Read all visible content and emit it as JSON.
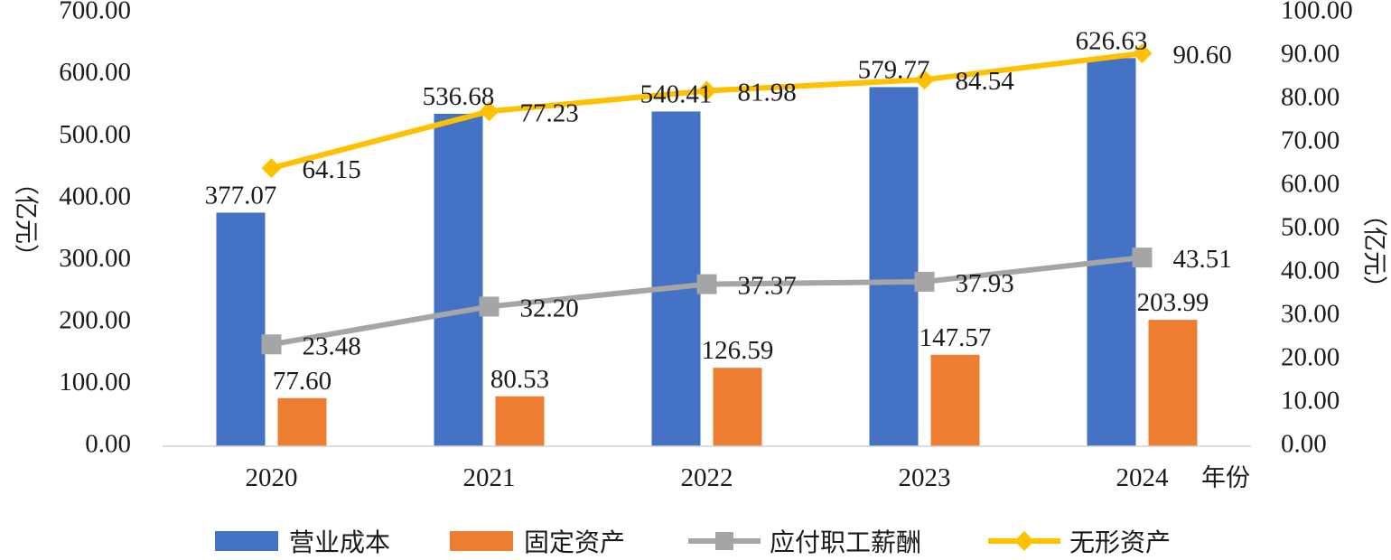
{
  "chart_data": {
    "type": "bar",
    "categories": [
      "2020",
      "2021",
      "2022",
      "2023",
      "2024"
    ],
    "xlabel": "年份",
    "ylabel_left": "（亿元）",
    "ylabel_right": "（亿元）",
    "ylim_left": [
      0,
      700
    ],
    "ylim_right": [
      0,
      100
    ],
    "yticks_left": [
      "0.00",
      "100.00",
      "200.00",
      "300.00",
      "400.00",
      "500.00",
      "600.00",
      "700.00"
    ],
    "yticks_right": [
      "0.00",
      "10.00",
      "20.00",
      "30.00",
      "40.00",
      "50.00",
      "60.00",
      "70.00",
      "80.00",
      "90.00",
      "100.00"
    ],
    "grid": false,
    "legend_position": "bottom",
    "series": [
      {
        "name": "营业成本",
        "type": "bar",
        "axis": "left",
        "color": "#4472C4",
        "values": [
          377.07,
          536.68,
          540.41,
          579.77,
          626.63
        ],
        "labels": [
          "377.07",
          "536.68",
          "540.41",
          "579.77",
          "626.63"
        ]
      },
      {
        "name": "固定资产",
        "type": "bar",
        "axis": "left",
        "color": "#ED7D31",
        "values": [
          77.6,
          80.53,
          126.59,
          147.57,
          203.99
        ],
        "labels": [
          "77.60",
          "80.53",
          "126.59",
          "147.57",
          "203.99"
        ]
      },
      {
        "name": "应付职工薪酬",
        "type": "line",
        "axis": "right",
        "color": "#A5A5A5",
        "marker": "square",
        "values": [
          23.48,
          32.2,
          37.37,
          37.93,
          43.51
        ],
        "labels": [
          "23.48",
          "32.20",
          "37.37",
          "37.93",
          "43.51"
        ]
      },
      {
        "name": "无形资产",
        "type": "line",
        "axis": "right",
        "color": "#FFC000",
        "marker": "diamond",
        "values": [
          64.15,
          77.23,
          81.98,
          84.54,
          90.6
        ],
        "labels": [
          "64.15",
          "77.23",
          "81.98",
          "84.54",
          "90.60"
        ]
      }
    ]
  }
}
